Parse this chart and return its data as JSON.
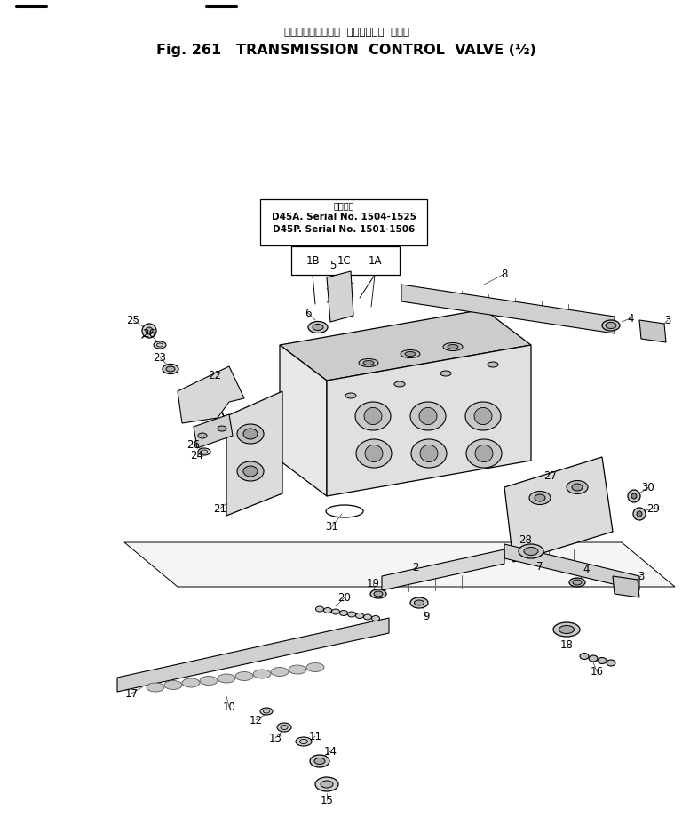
{
  "title_jp": "トランスミッション  コントロール  バルブ",
  "title_en": "Fig. 261   TRANSMISSION  CONTROL  VALVE (½)",
  "note_jp": "適用小物",
  "note_line1": "D45A. Serial No. 1504-1525",
  "note_line2": "D45P. Serial No. 1501-1506",
  "bg_color": "#ffffff",
  "line_color": "#000000",
  "fig_width": 7.77,
  "fig_height": 9.38
}
